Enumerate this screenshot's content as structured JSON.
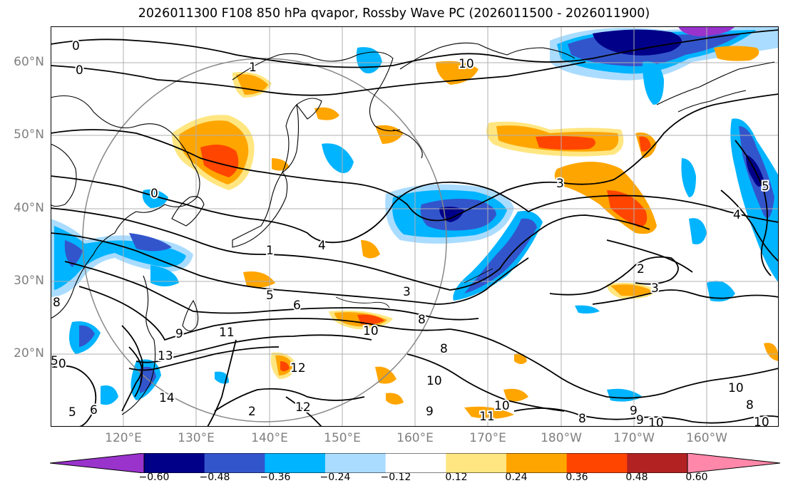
{
  "title": "2026011300 F108 850 hPa qvapor, Rossby Wave PC (2026011500 - 2026011900)",
  "lat_labels": [
    "60°N",
    "50°N",
    "40°N",
    "30°N",
    "20°N"
  ],
  "lon_labels": [
    "120°E",
    "130°E",
    "140°E",
    "150°E",
    "160°E",
    "170°E",
    "180°W",
    "170°W",
    "160°W"
  ],
  "colorbar": {
    "ticks": [
      "−0.60",
      "−0.48",
      "−0.36",
      "−0.24",
      "−0.12",
      "0.12",
      "0.24",
      "0.36",
      "0.48",
      "0.60"
    ],
    "colors": [
      "#9933cc",
      "#000088",
      "#3355cc",
      "#00b4ff",
      "#aadcff",
      "#ffffff",
      "#ffe680",
      "#ffa500",
      "#ff4500",
      "#b22222",
      "#ff88aa"
    ]
  },
  "contour_labels": [
    "0",
    "0",
    "1",
    "10",
    "1",
    "3",
    "0",
    "4",
    "2",
    "3",
    "4",
    "5",
    "8",
    "9",
    "5",
    "6",
    "3",
    "8",
    "11",
    "10",
    "13",
    "8",
    "10",
    "12",
    "12",
    "14",
    "2",
    "5",
    "6",
    "10",
    "11",
    "10",
    "9",
    "8",
    "9",
    "9",
    "10",
    "10",
    "8",
    "10",
    "5"
  ]
}
